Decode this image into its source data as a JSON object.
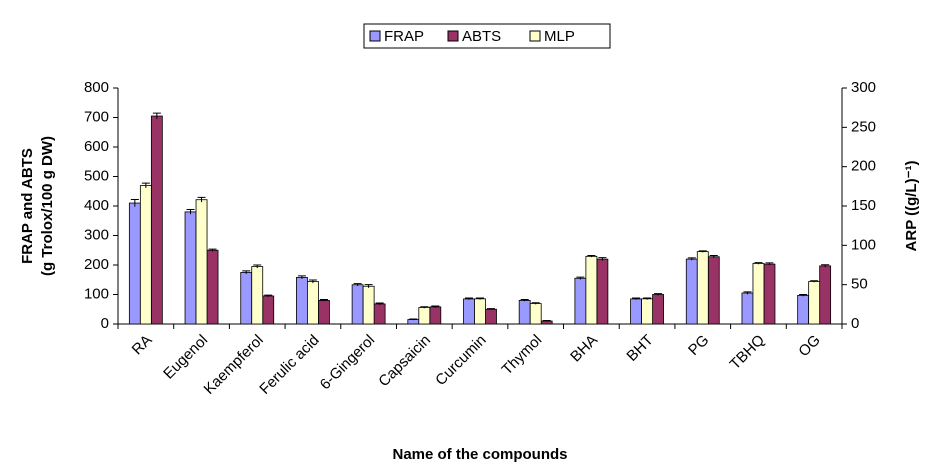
{
  "chart_data": {
    "type": "bar",
    "x_label": "Name of the compounds",
    "y_label": [
      "FRAP and ABTS",
      "(g Trolox/100 g DW)"
    ],
    "y2_label": "ARP ((g/L)⁻¹)",
    "categories": [
      "RA",
      "Eugenol",
      "Kaempferol",
      "Ferulic acid",
      "6-Gingerol",
      "Capsaicin",
      "Curcumin",
      "Thymol",
      "BHA",
      "BHT",
      "PG",
      "TBHQ",
      "OG"
    ],
    "series": [
      {
        "name": "FRAP",
        "color": "#9999ff",
        "values": [
          410,
          380,
          175,
          158,
          133,
          15,
          85,
          80,
          155,
          85,
          220,
          105,
          97
        ],
        "errors": [
          12,
          8,
          5,
          5,
          4,
          2,
          3,
          3,
          4,
          3,
          4,
          4,
          3
        ]
      },
      {
        "name": "ABTS",
        "color": "#993366",
        "values": [
          705,
          250,
          95,
          80,
          68,
          58,
          50,
          10,
          220,
          100,
          228,
          203,
          197
        ],
        "errors": [
          10,
          4,
          3,
          3,
          3,
          3,
          2,
          2,
          5,
          3,
          4,
          4,
          4
        ]
      },
      {
        "name": "MLP",
        "color": "#ffffcc",
        "axis": "y2",
        "values": [
          176,
          158,
          73,
          54,
          48,
          21,
          32,
          26,
          86,
          32,
          92,
          77,
          54
        ],
        "errors": [
          3,
          3,
          2,
          2,
          2,
          1,
          1,
          1,
          1,
          1,
          1,
          1,
          1
        ]
      }
    ],
    "ylim": [
      0,
      800
    ],
    "yticks": [
      0,
      100,
      200,
      300,
      400,
      500,
      600,
      700,
      800
    ],
    "y2lim": [
      0,
      300
    ],
    "y2ticks": [
      0,
      50,
      100,
      150,
      200,
      250,
      300
    ],
    "legend": "top"
  }
}
